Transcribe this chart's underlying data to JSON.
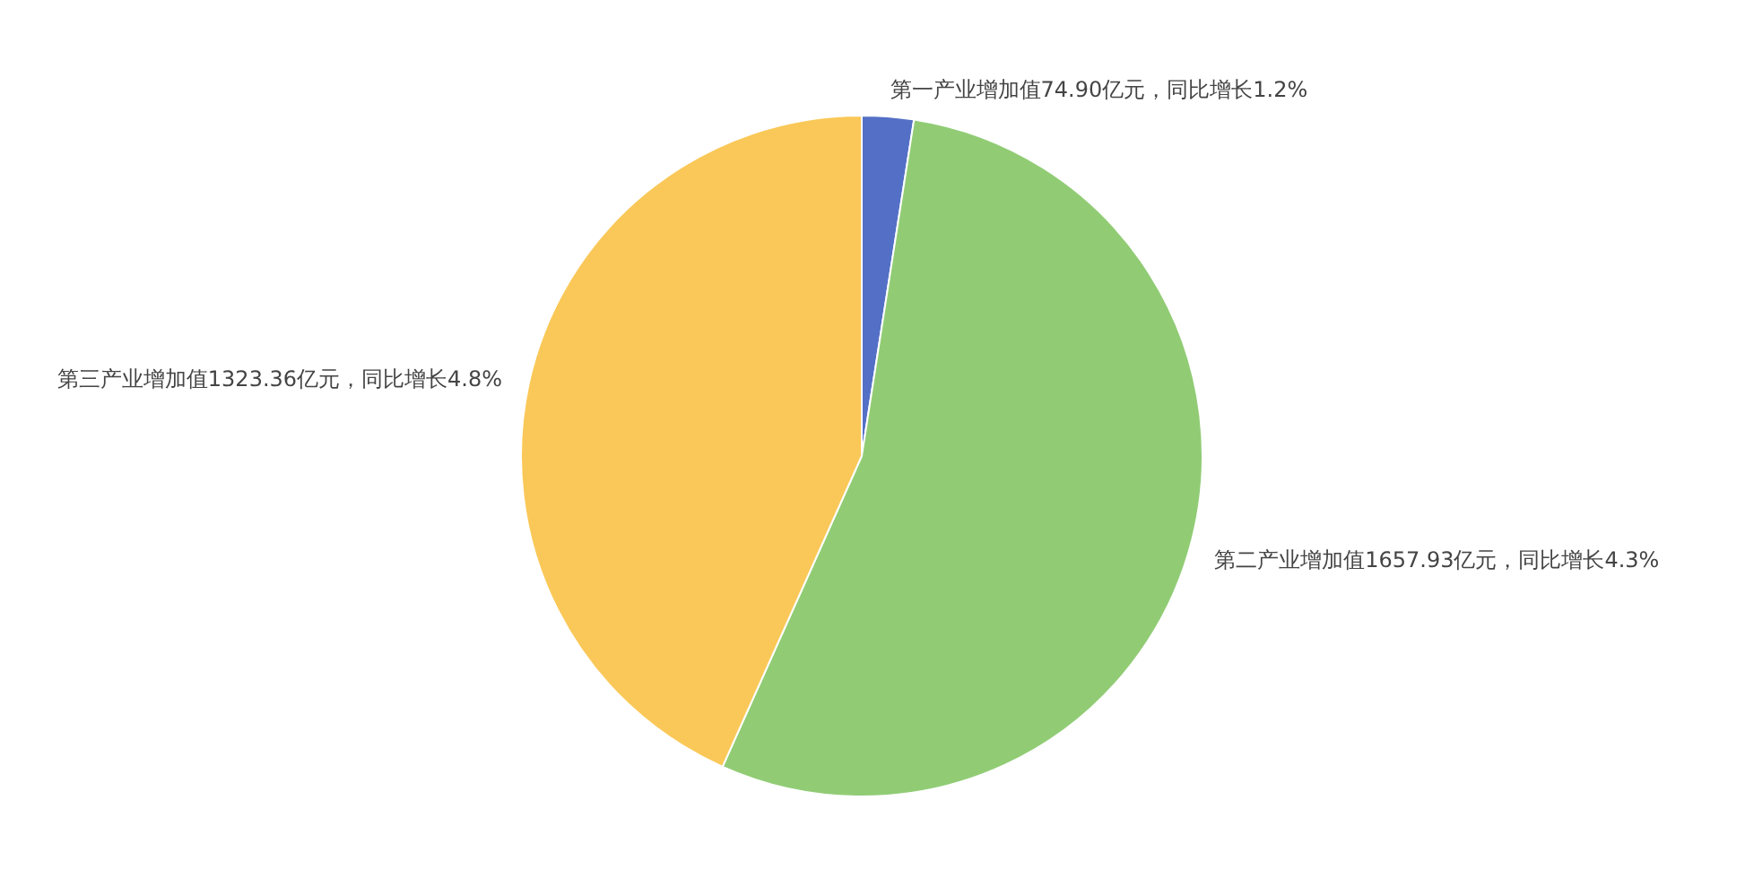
{
  "chart_data": {
    "type": "pie",
    "categories": [
      "第一产业增加值74.90亿元，同比增长1.2%",
      "第二产业增加值1657.93亿元，同比增长4.3%",
      "第三产业增加值1323.36亿元，同比增长4.8%"
    ],
    "values": [
      74.9,
      1657.93,
      1323.36
    ],
    "colors": [
      "#5470c6",
      "#91cc75",
      "#fac858"
    ],
    "legend": false
  }
}
